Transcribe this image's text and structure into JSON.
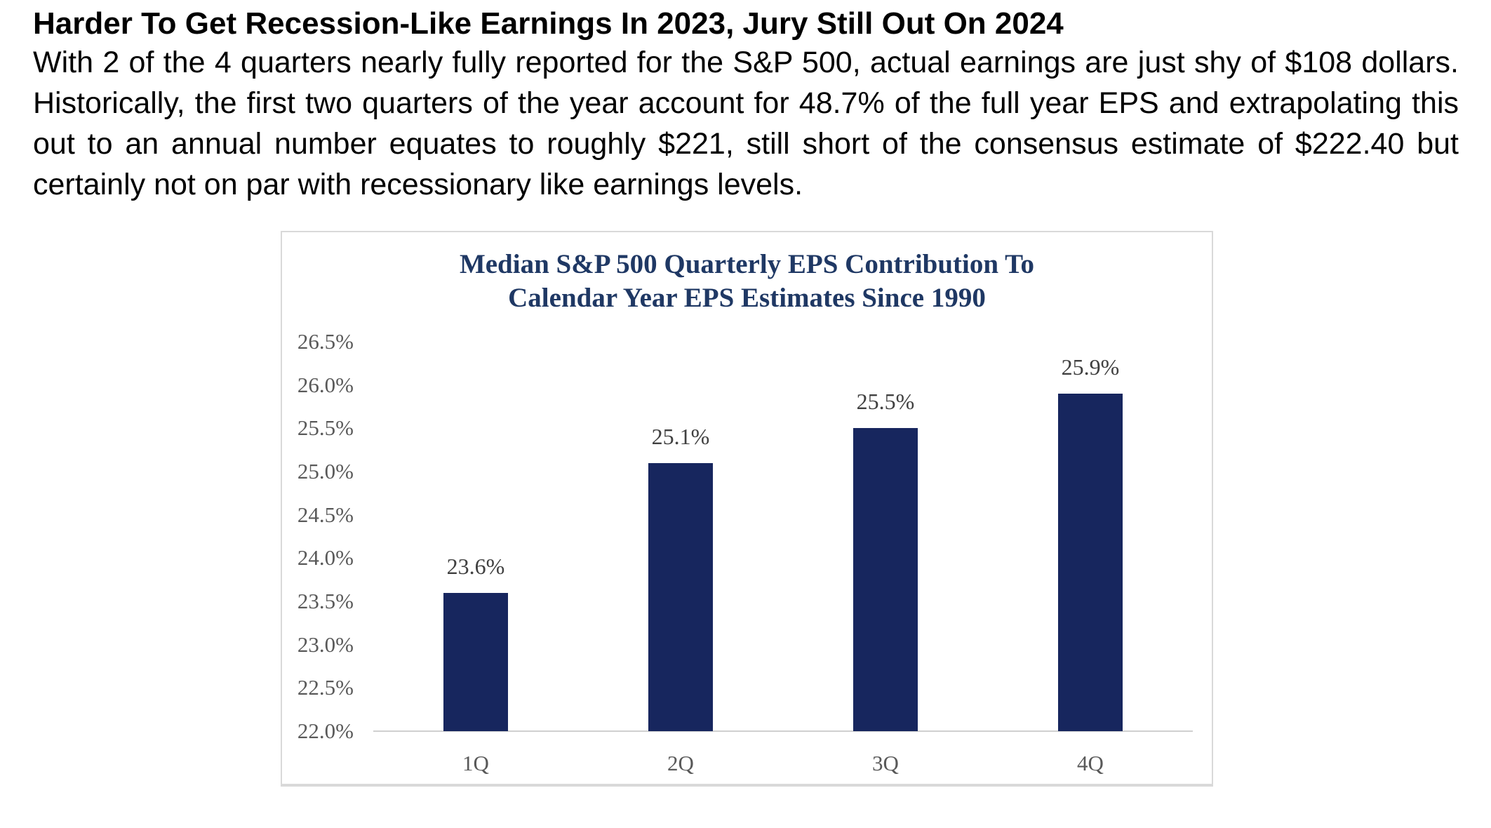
{
  "article": {
    "headline": "Harder To Get Recession-Like Earnings In 2023, Jury Still Out On 2024",
    "paragraph": "With 2 of the 4 quarters nearly fully reported for the S&P 500, actual earnings are just shy of $108 dollars. Historically, the first two quarters of the year account for 48.7% of the full year EPS and extrapolating this out to an annual number equates to roughly $221, still short of the consensus estimate of $222.40 but certainly not on par with recessionary like earnings levels."
  },
  "chart_data": {
    "type": "bar",
    "title": "Median S&P 500 Quarterly EPS Contribution To Calendar Year EPS Estimates Since 1990",
    "title_lines": [
      "Median S&P 500 Quarterly EPS Contribution To",
      "Calendar Year EPS Estimates Since 1990"
    ],
    "categories": [
      "1Q",
      "2Q",
      "3Q",
      "4Q"
    ],
    "values": [
      23.6,
      25.1,
      25.5,
      25.9
    ],
    "data_labels": [
      "23.6%",
      "25.1%",
      "25.5%",
      "25.9%"
    ],
    "y_ticks": [
      {
        "value": 26.5,
        "label": "26.5%"
      },
      {
        "value": 26.0,
        "label": "26.0%"
      },
      {
        "value": 25.5,
        "label": "25.5%"
      },
      {
        "value": 25.0,
        "label": "25.0%"
      },
      {
        "value": 24.5,
        "label": "24.5%"
      },
      {
        "value": 24.0,
        "label": "24.0%"
      },
      {
        "value": 23.5,
        "label": "23.5%"
      },
      {
        "value": 23.0,
        "label": "23.0%"
      },
      {
        "value": 22.5,
        "label": "22.5%"
      },
      {
        "value": 22.0,
        "label": "22.0%"
      }
    ],
    "ylim": [
      22.0,
      26.5
    ],
    "xlabel": "",
    "ylabel": "",
    "grid": false,
    "legend": false,
    "colors": {
      "bar": "#17265E",
      "title": "#1F3864",
      "tick_label": "#595959",
      "data_label": "#404040",
      "axis_line": "#D0D0D0",
      "chart_border": "#D9D9D9"
    }
  }
}
